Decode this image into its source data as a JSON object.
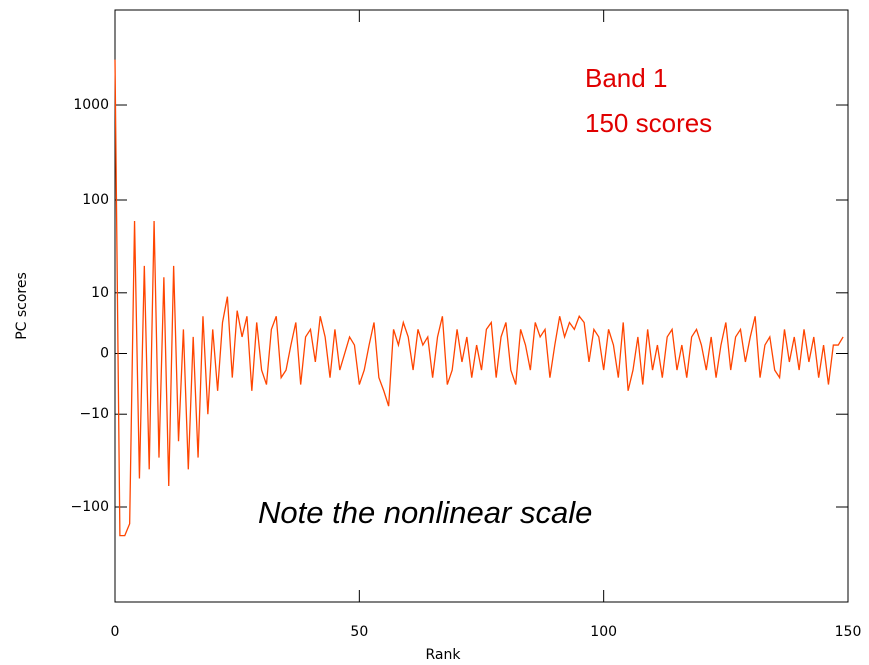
{
  "chart_data": {
    "type": "line",
    "x_label": "Rank",
    "y_label": "PC scores",
    "annotations": [
      "Band 1",
      "150 scores",
      "Note the nonlinear scale"
    ],
    "scale": "symlog",
    "color": "#ff4500",
    "xlim": [
      0,
      150
    ],
    "xticks": [
      0,
      50,
      100,
      150
    ],
    "ylim": [
      -1000,
      10000
    ],
    "yticks": [
      {
        "value": -100,
        "label": "−100"
      },
      {
        "value": -10,
        "label": "−10"
      },
      0,
      10,
      100,
      1000
    ],
    "x": [
      0,
      1,
      2,
      3,
      4,
      5,
      6,
      7,
      8,
      9,
      10,
      11,
      12,
      13,
      14,
      15,
      16,
      17,
      18,
      19,
      20,
      21,
      22,
      23,
      24,
      25,
      26,
      27,
      28,
      29,
      30,
      31,
      32,
      33,
      34,
      35,
      36,
      37,
      38,
      39,
      40,
      41,
      42,
      43,
      44,
      45,
      46,
      47,
      48,
      49,
      50,
      51,
      52,
      53,
      54,
      55,
      56,
      57,
      58,
      59,
      60,
      61,
      62,
      63,
      64,
      65,
      66,
      67,
      68,
      69,
      70,
      71,
      72,
      73,
      74,
      75,
      76,
      77,
      78,
      79,
      80,
      81,
      82,
      83,
      84,
      85,
      86,
      87,
      88,
      89,
      90,
      91,
      92,
      93,
      94,
      95,
      96,
      97,
      98,
      99,
      100,
      101,
      102,
      103,
      104,
      105,
      106,
      107,
      108,
      109,
      110,
      111,
      112,
      113,
      114,
      115,
      116,
      117,
      118,
      119,
      120,
      121,
      122,
      123,
      124,
      125,
      126,
      127,
      128,
      129,
      130,
      131,
      132,
      133,
      134,
      135,
      136,
      137,
      138,
      139,
      140,
      141,
      142,
      143,
      144,
      145,
      146,
      147,
      148,
      149
    ],
    "values": [
      3000,
      -200,
      -200,
      -150,
      60,
      -50,
      20,
      -40,
      60,
      -30,
      15,
      -60,
      20,
      -20,
      3,
      -40,
      2,
      -30,
      5,
      -10,
      3,
      -5,
      4,
      9,
      -3,
      6,
      2,
      5,
      -5,
      4,
      -2,
      -4,
      3,
      5,
      -3,
      -2,
      1,
      4,
      -4,
      2,
      3,
      -1,
      5,
      2,
      -3,
      3,
      -2,
      0,
      2,
      1,
      -4,
      -2,
      1,
      4,
      -3,
      -5,
      -8,
      3,
      1,
      4,
      2,
      -2,
      3,
      1,
      2,
      -3,
      2,
      5,
      -4,
      -2,
      3,
      -1,
      2,
      -3,
      1,
      -2,
      3,
      4,
      -3,
      2,
      4,
      -2,
      -4,
      3,
      1,
      -2,
      4,
      2,
      3,
      -3,
      1,
      5,
      2,
      4,
      3,
      5,
      4,
      -1,
      3,
      2,
      -2,
      3,
      1,
      -3,
      4,
      -5,
      -2,
      2,
      -4,
      3,
      -2,
      1,
      -3,
      2,
      3,
      -2,
      1,
      -3,
      2,
      3,
      1,
      -2,
      2,
      -3,
      1,
      4,
      -2,
      2,
      3,
      -1,
      2,
      5,
      -3,
      1,
      2,
      -2,
      -3,
      3,
      -1,
      2,
      -2,
      3,
      -1,
      2,
      -3,
      1,
      -4,
      1,
      1,
      2
    ]
  }
}
